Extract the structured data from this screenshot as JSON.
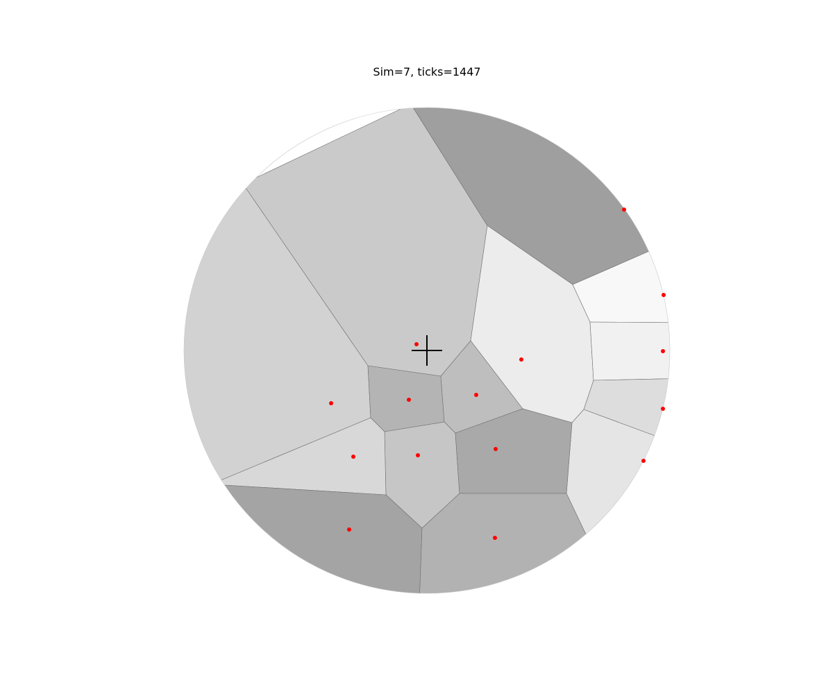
{
  "title": "Sim=7, ticks=1447",
  "colors": {
    "site": "#ff0000",
    "cell_edge": "#6e6e6e",
    "crosshair": "#000000"
  },
  "cells": [
    {
      "id": "top-left",
      "shade": "#cacaca"
    },
    {
      "id": "top-right",
      "shade": "#9f9f9f"
    },
    {
      "id": "left",
      "shade": "#d2d2d2"
    },
    {
      "id": "right-mid",
      "shade": "#ececec"
    },
    {
      "id": "edge-upper",
      "shade": "#f8f8f8"
    },
    {
      "id": "edge-mid",
      "shade": "#f1f1f1"
    },
    {
      "id": "edge-lower",
      "shade": "#dddddd"
    },
    {
      "id": "edge-bottom",
      "shade": "#e5e5e5"
    },
    {
      "id": "center-a",
      "shade": "#b4b4b4"
    },
    {
      "id": "center-b",
      "shade": "#bebebe"
    },
    {
      "id": "center-c",
      "shade": "#c6c6c6"
    },
    {
      "id": "center-d",
      "shade": "#a9a9a9"
    },
    {
      "id": "lower-left",
      "shade": "#d8d8d8"
    },
    {
      "id": "bottom-left",
      "shade": "#a4a4a4"
    },
    {
      "id": "bottom-right",
      "shade": "#b2b2b2"
    }
  ],
  "site_count": 15,
  "crosshair_visible": true
}
